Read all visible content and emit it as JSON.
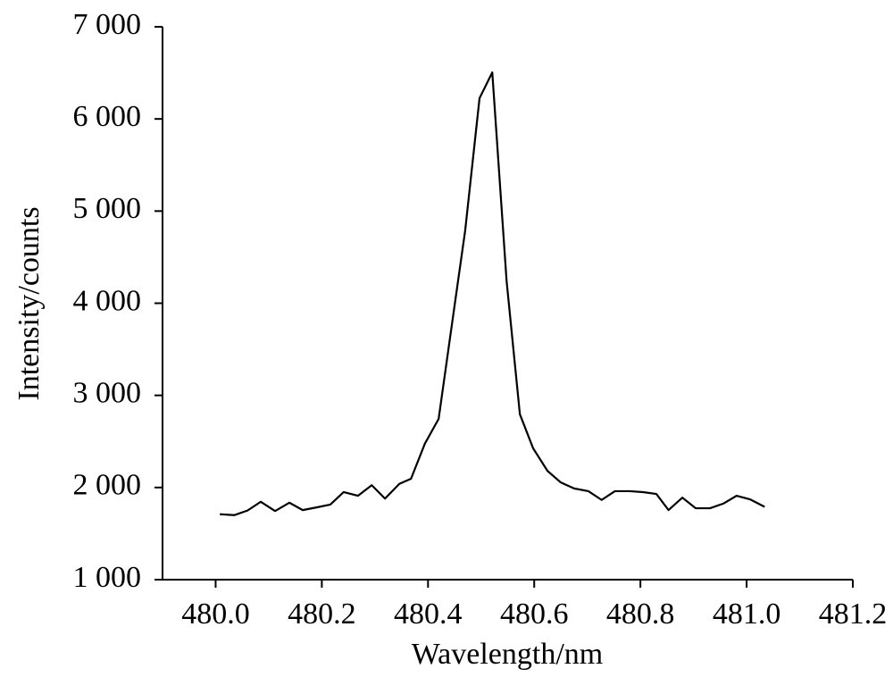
{
  "chart_data": {
    "type": "line",
    "x_label": "Wavelength/nm",
    "y_label": "Intensity/counts",
    "xlim": [
      479.9,
      481.2
    ],
    "xticks": [
      {
        "value": 480,
        "label": "480.0"
      },
      480.2,
      480.4,
      480.6,
      480.8,
      {
        "value": 481,
        "label": "481.0"
      },
      481.2
    ],
    "ylim": [
      1000,
      7000
    ],
    "yticks": [
      {
        "value": 1000,
        "label": "1 000"
      },
      {
        "value": 2000,
        "label": "2 000"
      },
      {
        "value": 3000,
        "label": "3 000"
      },
      {
        "value": 4000,
        "label": "4 000"
      },
      {
        "value": 5000,
        "label": "5 000"
      },
      {
        "value": 6000,
        "label": "6 000"
      },
      {
        "value": 7000,
        "label": "7 000"
      }
    ],
    "grid": false,
    "color": "#000000",
    "x": [
      480.008,
      480.035,
      480.06,
      480.085,
      480.112,
      480.139,
      480.164,
      480.191,
      480.216,
      480.241,
      480.268,
      480.294,
      480.319,
      480.346,
      480.368,
      480.394,
      480.42,
      480.445,
      480.47,
      480.497,
      480.521,
      480.548,
      480.573,
      480.598,
      480.625,
      480.65,
      480.675,
      480.702,
      480.727,
      480.752,
      480.78,
      480.805,
      480.83,
      480.853,
      480.879,
      480.904,
      480.931,
      480.956,
      480.981,
      481.007,
      481.034
    ],
    "values": [
      1710,
      1700,
      1750,
      1845,
      1745,
      1835,
      1755,
      1785,
      1815,
      1950,
      1910,
      2025,
      1880,
      2040,
      2095,
      2475,
      2745,
      3770,
      4790,
      6225,
      6505,
      4240,
      2795,
      2425,
      2180,
      2055,
      1990,
      1960,
      1865,
      1960,
      1960,
      1950,
      1930,
      1755,
      1890,
      1775,
      1775,
      1825,
      1910,
      1870,
      1790
    ]
  }
}
